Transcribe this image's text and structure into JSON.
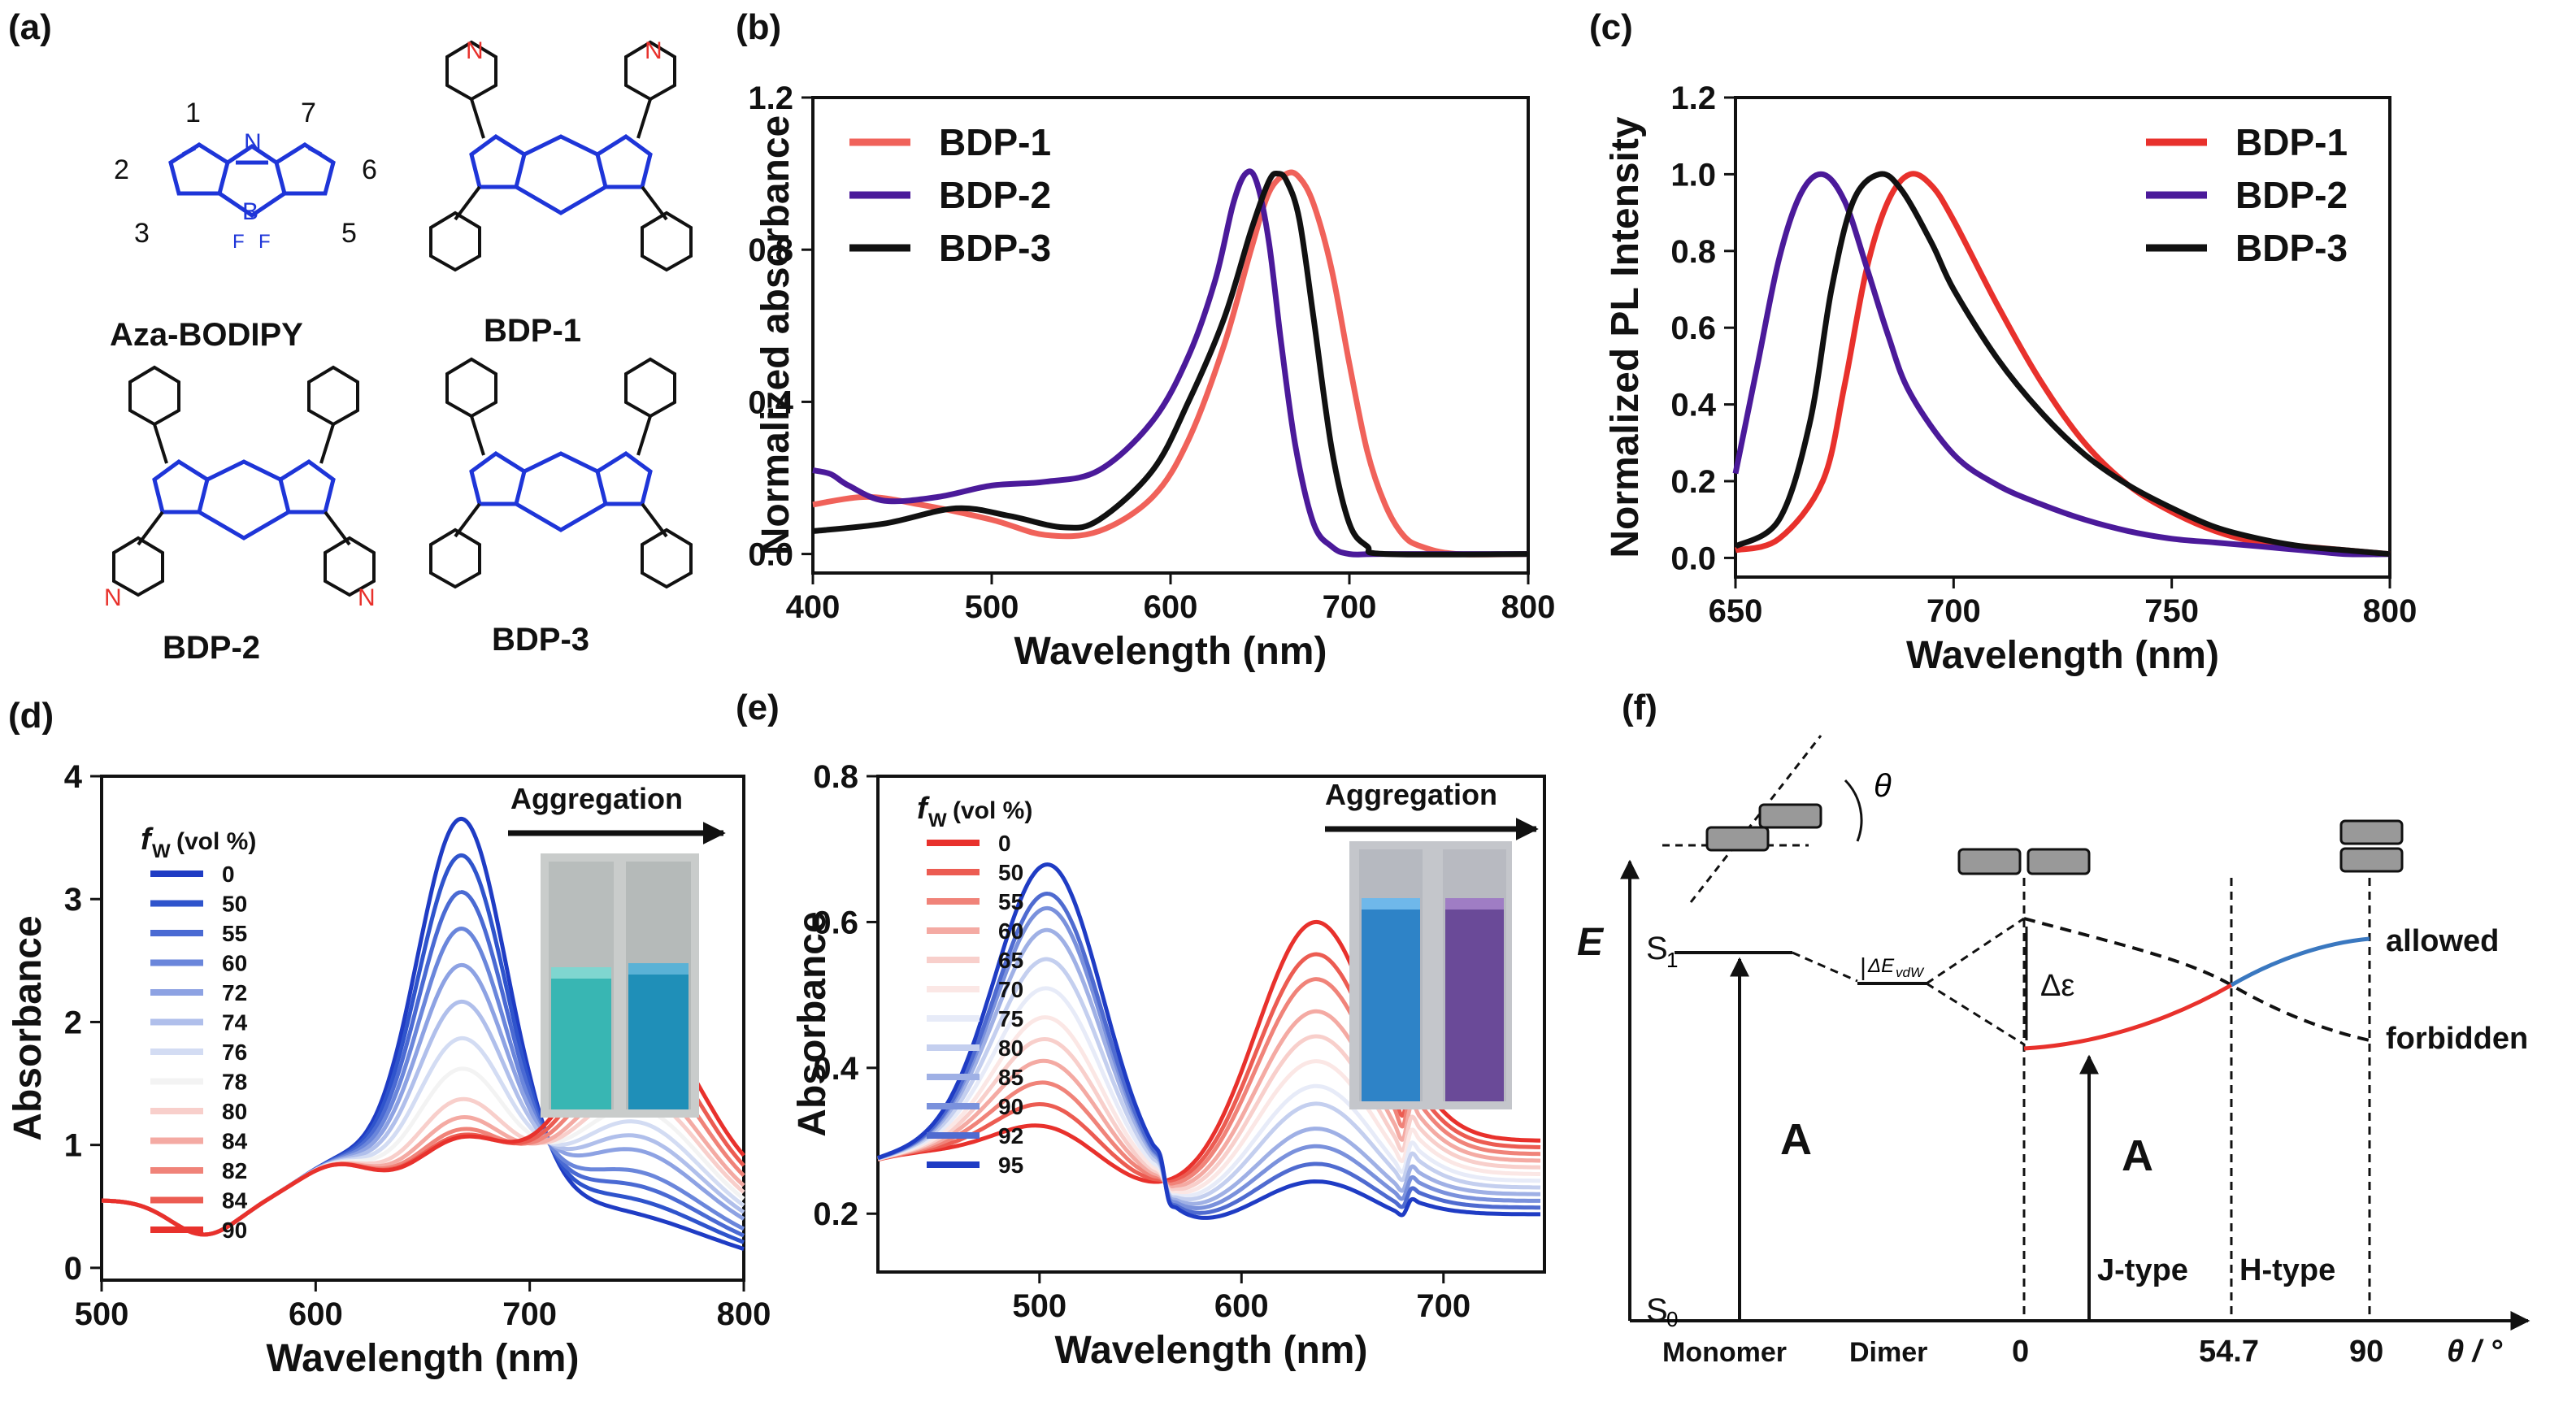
{
  "panels": {
    "a": {
      "label": "(a)",
      "positions": [
        "1",
        "2",
        "3",
        "5",
        "6",
        "7"
      ],
      "molecules": [
        "Aza-BODIPY",
        "BDP-1",
        "BDP-2",
        "BDP-3"
      ],
      "atoms": {
        "N": "N",
        "B": "B",
        "F": "F",
        "minus": "−",
        "plus": "+"
      }
    },
    "b": {
      "label": "(b)"
    },
    "c": {
      "label": "(c)"
    },
    "d": {
      "label": "(d)",
      "aggregation": "Aggregation",
      "legend_title": "f",
      "legend_sub": "W",
      "legend_unit": "(vol %)"
    },
    "e": {
      "label": "(e)",
      "aggregation": "Aggregation",
      "legend_title": "f",
      "legend_sub": "W",
      "legend_unit": "(vol %)"
    },
    "f": {
      "label": "(f)",
      "E": "E",
      "S1": "S",
      "S1_sub": "1",
      "S0": "S",
      "S0_sub": "0",
      "A": "A",
      "delta_vdw": "ΔE",
      "delta_vdw_sub": "vdW",
      "delta_eps": "Δε",
      "theta": "θ",
      "allowed": "allowed",
      "forbidden": "forbidden",
      "jtype": "J-type",
      "htype": "H-type",
      "monomer": "Monomer",
      "dimer": "Dimer",
      "tick0": "0",
      "tick547": "54.7",
      "tick90": "90",
      "xaxis": "θ / °",
      "colors": {
        "red": "#e8312c",
        "blue": "#3a78c0"
      }
    }
  },
  "chart_data": [
    {
      "panel": "b",
      "type": "line",
      "xlabel": "Wavelength (nm)",
      "ylabel": "Normalized absorbance",
      "xlim": [
        400,
        800
      ],
      "ylim": [
        -0.05,
        1.2
      ],
      "xticks": [
        400,
        500,
        600,
        700,
        800
      ],
      "yticks": [
        0.0,
        0.4,
        0.8,
        1.2
      ],
      "legend_position": "top-left",
      "series": [
        {
          "name": "BDP-1",
          "color": "#f0625a",
          "x": [
            400,
            430,
            460,
            500,
            530,
            560,
            590,
            610,
            630,
            645,
            655,
            665,
            672,
            680,
            690,
            700,
            710,
            720,
            730,
            740,
            760,
            800
          ],
          "y": [
            0.13,
            0.15,
            0.13,
            0.09,
            0.05,
            0.06,
            0.15,
            0.3,
            0.55,
            0.8,
            0.95,
            1.0,
            0.99,
            0.92,
            0.75,
            0.5,
            0.27,
            0.13,
            0.05,
            0.02,
            0.0,
            0.0
          ]
        },
        {
          "name": "BDP-2",
          "color": "#4b1a9a",
          "x": [
            400,
            410,
            420,
            440,
            470,
            500,
            530,
            560,
            590,
            610,
            625,
            635,
            642,
            648,
            655,
            662,
            670,
            680,
            690,
            700,
            720,
            800
          ],
          "y": [
            0.22,
            0.21,
            0.18,
            0.14,
            0.15,
            0.18,
            0.19,
            0.22,
            0.35,
            0.52,
            0.72,
            0.92,
            1.0,
            0.98,
            0.82,
            0.55,
            0.28,
            0.08,
            0.02,
            0.0,
            0.0,
            0.0
          ]
        },
        {
          "name": "BDP-3",
          "color": "#111111",
          "x": [
            400,
            440,
            480,
            510,
            540,
            560,
            590,
            610,
            630,
            645,
            655,
            660,
            665,
            672,
            680,
            690,
            700,
            710,
            720,
            800
          ],
          "y": [
            0.06,
            0.08,
            0.12,
            0.1,
            0.07,
            0.09,
            0.22,
            0.4,
            0.62,
            0.85,
            0.98,
            1.0,
            0.98,
            0.88,
            0.62,
            0.28,
            0.08,
            0.02,
            0.0,
            0.0
          ]
        }
      ]
    },
    {
      "panel": "c",
      "type": "line",
      "xlabel": "Wavelength (nm)",
      "ylabel": "Normalized PL Intensity",
      "xlim": [
        650,
        800
      ],
      "ylim": [
        -0.05,
        1.2
      ],
      "xticks": [
        650,
        700,
        750,
        800
      ],
      "yticks": [
        0.0,
        0.2,
        0.4,
        0.6,
        0.8,
        1.0,
        1.2
      ],
      "legend_position": "top-right",
      "series": [
        {
          "name": "BDP-1",
          "color": "#e8312c",
          "x": [
            650,
            660,
            670,
            675,
            680,
            685,
            690,
            695,
            700,
            710,
            720,
            730,
            740,
            750,
            760,
            770,
            780,
            790,
            800
          ],
          "y": [
            0.02,
            0.05,
            0.2,
            0.45,
            0.75,
            0.93,
            1.0,
            0.97,
            0.88,
            0.66,
            0.46,
            0.3,
            0.19,
            0.12,
            0.07,
            0.04,
            0.03,
            0.02,
            0.01
          ]
        },
        {
          "name": "BDP-2",
          "color": "#4b1a9a",
          "x": [
            650,
            655,
            660,
            665,
            670,
            675,
            680,
            685,
            690,
            700,
            710,
            720,
            730,
            740,
            750,
            760,
            770,
            780,
            790,
            800
          ],
          "y": [
            0.22,
            0.5,
            0.78,
            0.95,
            1.0,
            0.93,
            0.76,
            0.58,
            0.43,
            0.27,
            0.19,
            0.14,
            0.1,
            0.07,
            0.05,
            0.04,
            0.03,
            0.02,
            0.01,
            0.01
          ]
        },
        {
          "name": "BDP-3",
          "color": "#111111",
          "x": [
            650,
            660,
            667,
            672,
            677,
            683,
            688,
            695,
            700,
            710,
            720,
            730,
            740,
            750,
            760,
            770,
            780,
            790,
            800
          ],
          "y": [
            0.03,
            0.1,
            0.35,
            0.7,
            0.93,
            1.0,
            0.96,
            0.82,
            0.7,
            0.52,
            0.38,
            0.27,
            0.19,
            0.13,
            0.08,
            0.05,
            0.03,
            0.02,
            0.01
          ]
        }
      ]
    },
    {
      "panel": "d",
      "type": "line",
      "xlabel": "Wavelength (nm)",
      "ylabel": "Absorbance",
      "xlim": [
        500,
        800
      ],
      "ylim": [
        -0.1,
        4
      ],
      "xticks": [
        500,
        600,
        700,
        800
      ],
      "yticks": [
        0,
        1,
        2,
        3,
        4
      ],
      "legend_position": "top-left",
      "legend_values": [
        "0",
        "50",
        "55",
        "60",
        "72",
        "74",
        "76",
        "78",
        "80",
        "84",
        "82",
        "84",
        "90"
      ],
      "legend_colors": [
        "#1f3cc4",
        "#2f54cc",
        "#4a6ad3",
        "#6a86db",
        "#8da2e3",
        "#b0bfeb",
        "#d3dcf3",
        "#f3f3f3",
        "#f8cfcb",
        "#f4aaa3",
        "#f08379",
        "#ec5c52",
        "#e8312c"
      ],
      "aggregation_peak_values": [
        3.8,
        3.5,
        3.2,
        2.9,
        2.6,
        2.3,
        2.0,
        1.75,
        1.5,
        1.35,
        1.25,
        1.2,
        1.18
      ],
      "aggregation_band_values": [
        0.1,
        0.2,
        0.3,
        0.4,
        0.55,
        0.65,
        0.75,
        0.85,
        0.95,
        1.05,
        1.2,
        1.35,
        1.5
      ]
    },
    {
      "panel": "e",
      "type": "line",
      "xlabel": "Wavelength (nm)",
      "ylabel": "Absorbance",
      "xlim": [
        420,
        750
      ],
      "ylim": [
        0.12,
        0.8
      ],
      "xticks": [
        500,
        600,
        700
      ],
      "yticks": [
        0.2,
        0.4,
        0.6,
        0.8
      ],
      "legend_position": "top-left",
      "legend_values": [
        "0",
        "50",
        "55",
        "60",
        "65",
        "70",
        "75",
        "80",
        "85",
        "90",
        "92",
        "95"
      ],
      "legend_colors": [
        "#e8312c",
        "#ec5c52",
        "#f08379",
        "#f4aaa3",
        "#f8cfcb",
        "#fbe7e5",
        "#e7ebf8",
        "#c4cfef",
        "#9fb0e5",
        "#7a91dc",
        "#4f6bd0",
        "#1f3cc4"
      ],
      "aggregation_peak_values": [
        0.33,
        0.36,
        0.39,
        0.42,
        0.45,
        0.48,
        0.52,
        0.56,
        0.6,
        0.63,
        0.65,
        0.69
      ],
      "aggregation_band_values": [
        0.58,
        0.54,
        0.51,
        0.47,
        0.44,
        0.41,
        0.38,
        0.36,
        0.33,
        0.31,
        0.29,
        0.27
      ]
    }
  ]
}
